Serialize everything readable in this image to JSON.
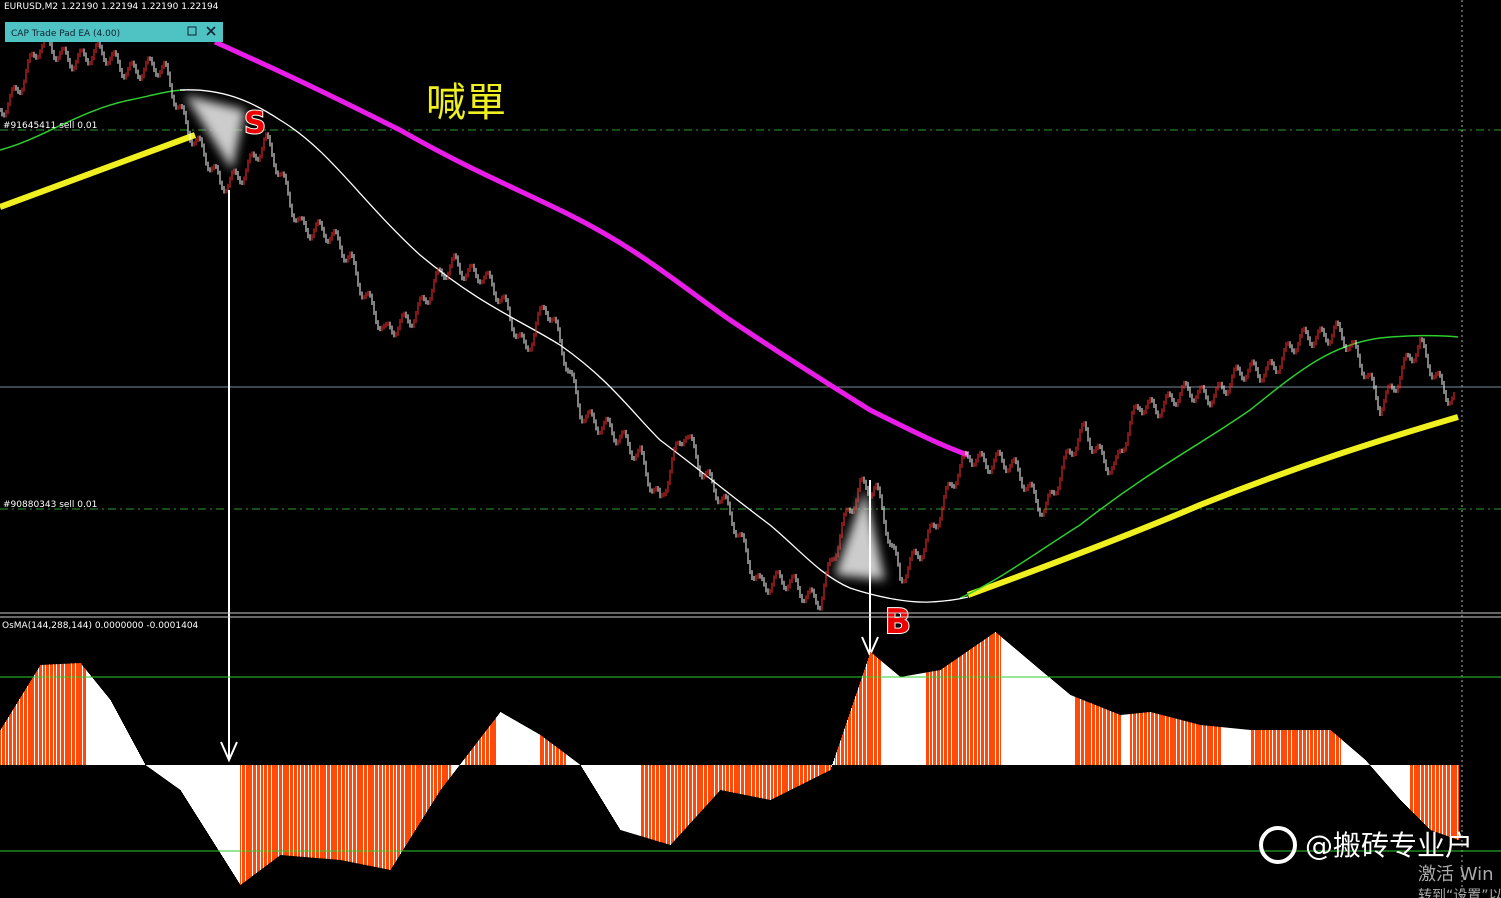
{
  "header": {
    "symbol_info": "EURUSD,M2  1.22190 1.22194 1.22190 1.22194"
  },
  "panel": {
    "title": "CAP Trade Pad EA (4.00)"
  },
  "annotations": {
    "call": "喊單",
    "sell_mark": "S",
    "buy_mark": "B"
  },
  "orders": [
    "#91645411 sell 0.01",
    "#90880343 sell 0.01"
  ],
  "indicator": {
    "label": "OsMA(144,288,144) 0.0000000 -0.0001404"
  },
  "watermark": {
    "account": "@搬砖专业户",
    "activate": "激活 Win",
    "settings": "转到“设置”以"
  }
}
